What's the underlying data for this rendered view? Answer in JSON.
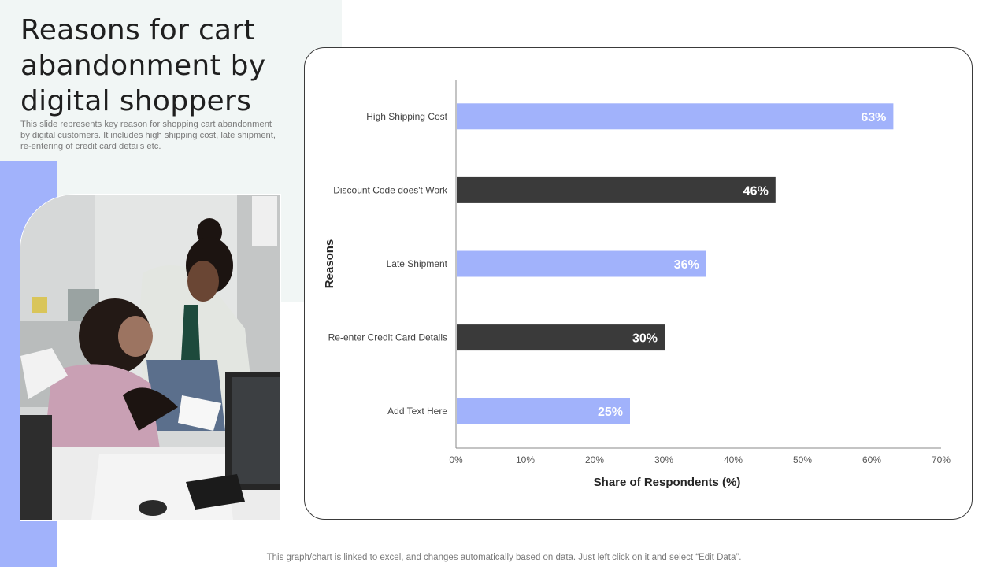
{
  "slide": {
    "title": "Reasons for cart abandonment by digital shoppers",
    "subtitle": "This slide represents  key reason for shopping cart abandonment by digital customers. It includes high shipping cost, late shipment, re-entering of credit card details etc.",
    "footer_note": "This graph/chart is linked to excel,  and changes automatically based on data. Just left click on it and select “Edit Data”."
  },
  "colors": {
    "accent": "#a1b2fb",
    "dark_bar": "#3a3a3a",
    "panel": "#f1f6f5"
  },
  "chart_data": {
    "type": "bar",
    "orientation": "horizontal",
    "categories": [
      "High Shipping Cost",
      "Discount Code does't Work",
      "Late Shipment",
      "Re-enter Credit Card Details",
      "Add Text Here"
    ],
    "values": [
      63,
      46,
      36,
      30,
      25
    ],
    "data_labels": [
      "63%",
      "46%",
      "36%",
      "30%",
      "25%"
    ],
    "bar_colors": [
      "#a1b2fb",
      "#3a3a3a",
      "#a1b2fb",
      "#3a3a3a",
      "#a1b2fb"
    ],
    "xlabel": "Share of Respondents (%)",
    "ylabel": "Reasons",
    "xlim": [
      0,
      70
    ],
    "xticks": [
      0,
      10,
      20,
      30,
      40,
      50,
      60,
      70
    ],
    "xtick_labels": [
      "0%",
      "10%",
      "20%",
      "30%",
      "40%",
      "50%",
      "60%",
      "70%"
    ],
    "grid": false,
    "legend": "none"
  }
}
